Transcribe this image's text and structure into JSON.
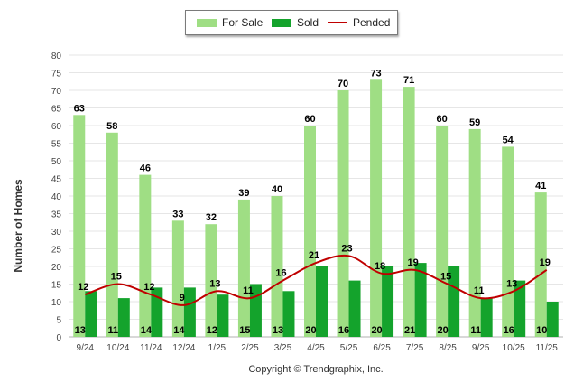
{
  "legend": {
    "for_sale": "For Sale",
    "sold": "Sold",
    "pended": "Pended"
  },
  "footer": {
    "copyright": "Copyright © Trendgraphix, Inc."
  },
  "colors": {
    "for_sale": "#9fde84",
    "sold": "#14a32c",
    "pended": "#c00000",
    "grid": "#e6e6e6"
  },
  "chart_data": {
    "type": "bar",
    "title": "",
    "xlabel": "",
    "ylabel": "Number of Homes",
    "ylim": [
      0,
      80
    ],
    "ytick_step": 5,
    "grid": true,
    "legend_position": "top-center",
    "categories": [
      "9/24",
      "10/24",
      "11/24",
      "12/24",
      "1/25",
      "2/25",
      "3/25",
      "4/25",
      "5/25",
      "6/25",
      "7/25",
      "8/25",
      "9/25",
      "10/25",
      "11/25"
    ],
    "series": [
      {
        "name": "For Sale",
        "kind": "bar",
        "values": [
          63,
          58,
          46,
          33,
          32,
          39,
          40,
          60,
          70,
          73,
          71,
          60,
          59,
          54,
          41
        ]
      },
      {
        "name": "Sold",
        "kind": "bar",
        "values": [
          13,
          11,
          14,
          14,
          12,
          15,
          13,
          20,
          16,
          20,
          21,
          20,
          11,
          16,
          10
        ]
      },
      {
        "name": "Pended",
        "kind": "line",
        "values": [
          12,
          15,
          12,
          9,
          13,
          11,
          16,
          21,
          23,
          18,
          19,
          15,
          11,
          13,
          19
        ]
      }
    ]
  }
}
